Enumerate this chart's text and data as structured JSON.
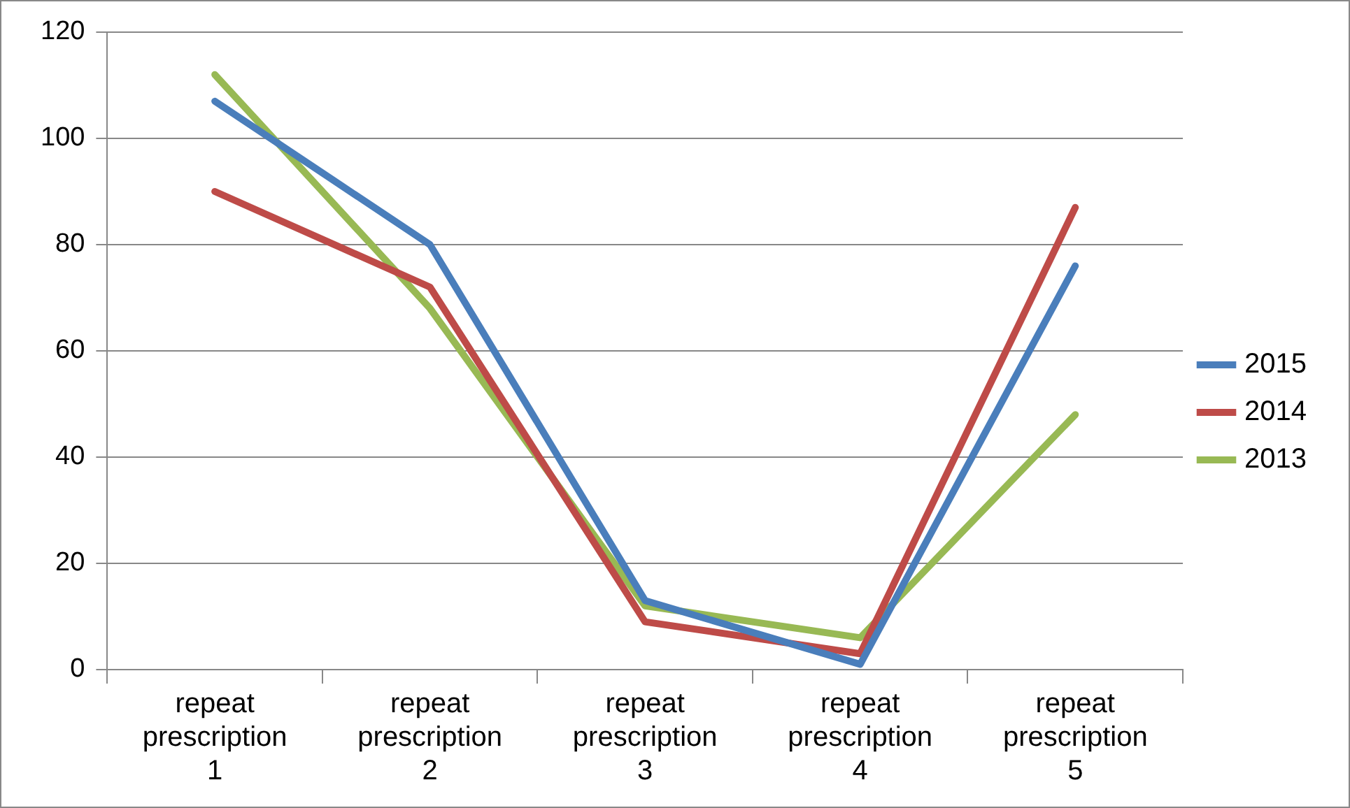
{
  "chart_data": {
    "type": "line",
    "categories": [
      "repeat prescription 1",
      "repeat prescription 2",
      "repeat prescription 3",
      "repeat prescription 4",
      "repeat prescription 5"
    ],
    "series": [
      {
        "name": "2015",
        "color": "#4a7ebb",
        "values": [
          107,
          80,
          13,
          1,
          76
        ]
      },
      {
        "name": "2014",
        "color": "#be4b48",
        "values": [
          90,
          72,
          9,
          3,
          87
        ]
      },
      {
        "name": "2013",
        "color": "#98b954",
        "values": [
          112,
          68,
          12,
          6,
          48
        ]
      }
    ],
    "ylim": [
      0,
      120
    ],
    "yticks": [
      0,
      20,
      40,
      60,
      80,
      100,
      120
    ],
    "grid": "y",
    "legend": "right",
    "marker": "none",
    "line_style": "solid"
  }
}
